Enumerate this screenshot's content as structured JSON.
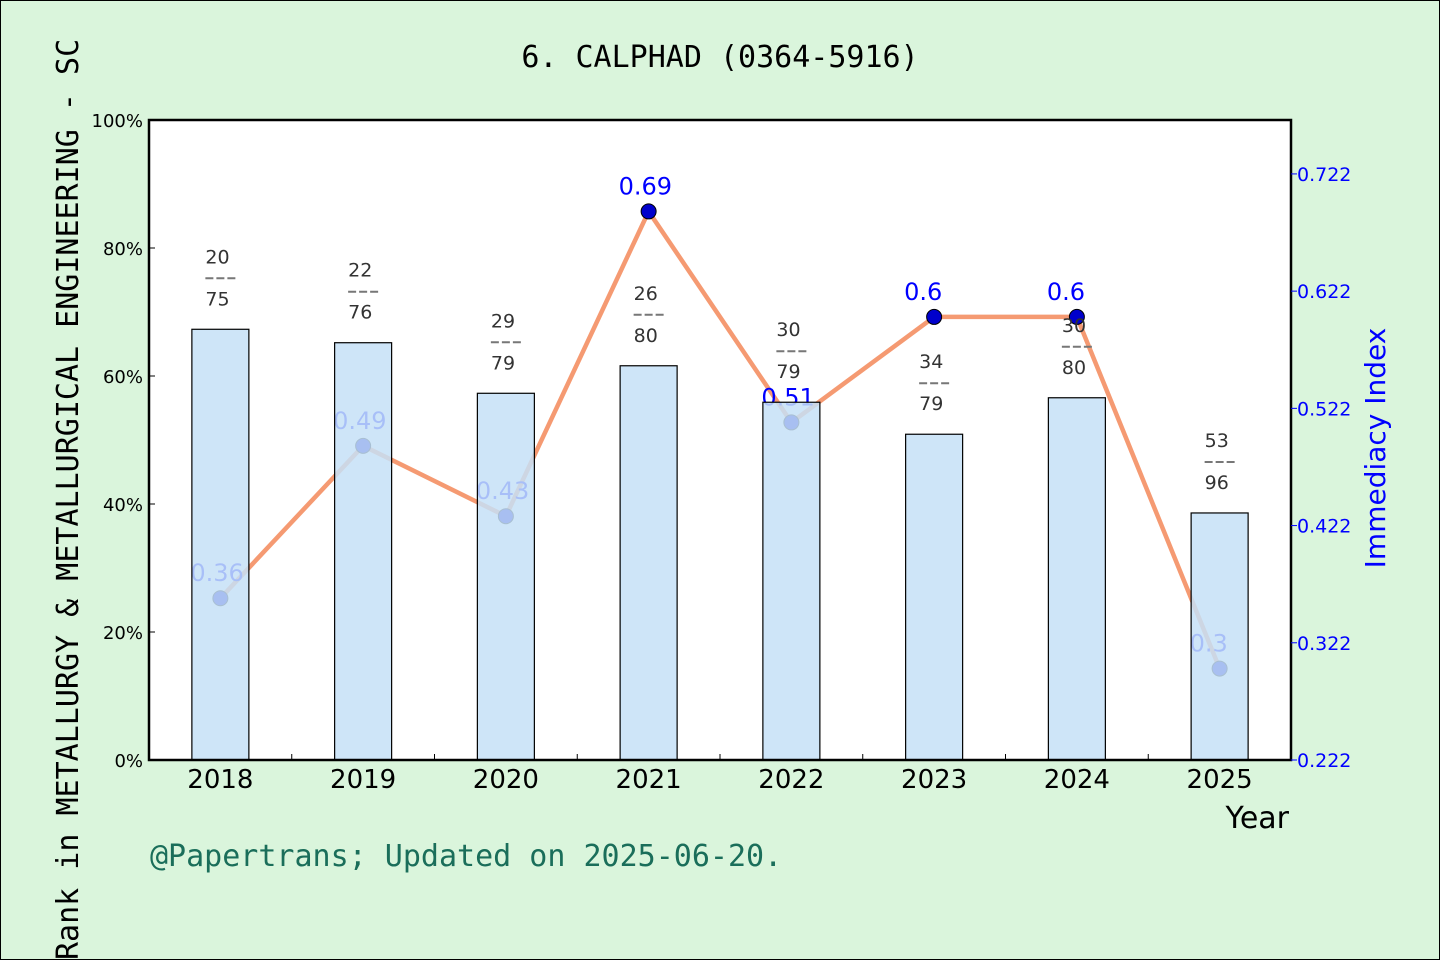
{
  "chart_data": {
    "type": "bar+line",
    "title": "6. CALPHAD (0364-5916)",
    "xlabel": "Year",
    "ylabel_left": "Rank in METALLURGY & METALLURGICAL ENGINEERING - SC",
    "ylabel_right": "Immediacy Index",
    "categories": [
      "2018",
      "2019",
      "2020",
      "2021",
      "2022",
      "2023",
      "2024",
      "2025"
    ],
    "bar_values_percent": [
      67.3,
      65.2,
      57.3,
      61.6,
      55.9,
      50.9,
      56.6,
      38.6
    ],
    "bar_labels": [
      {
        "rank": "20",
        "total": "75"
      },
      {
        "rank": "22",
        "total": "76"
      },
      {
        "rank": "29",
        "total": "79"
      },
      {
        "rank": "26",
        "total": "80"
      },
      {
        "rank": "30",
        "total": "79"
      },
      {
        "rank": "34",
        "total": "79"
      },
      {
        "rank": "30",
        "total": "80"
      },
      {
        "rank": "53",
        "total": "96"
      }
    ],
    "line_values": [
      0.36,
      0.49,
      0.43,
      0.69,
      0.51,
      0.6,
      0.6,
      0.3
    ],
    "line_labels": [
      "0.36",
      "0.49",
      "0.43",
      "0.69",
      "0.51",
      "0.6",
      "0.6",
      "0.3"
    ],
    "ylim_left": [
      0,
      100
    ],
    "yticks_left": [
      "0%",
      "20%",
      "40%",
      "60%",
      "80%",
      "100%"
    ],
    "ylim_right": [
      0.222,
      0.768
    ],
    "yticks_right": [
      "0.222",
      "0.322",
      "0.422",
      "0.522",
      "0.622",
      "0.722"
    ],
    "grid": false,
    "colors": {
      "bar": "#c5e0f7",
      "line": "#f59a72",
      "marker": "#0000cc",
      "right_axis": "#0000ff",
      "background": "#daf5dc",
      "footer": "#1a6e5a"
    }
  },
  "footer": "@Papertrans; Updated on 2025-06-20."
}
